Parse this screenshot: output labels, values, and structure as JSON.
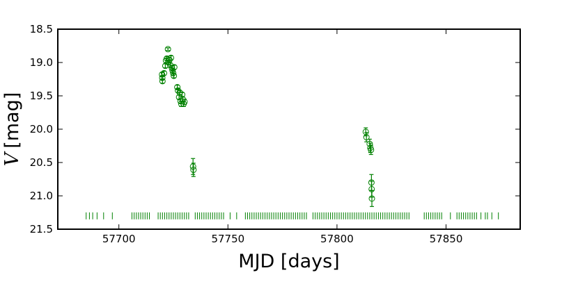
{
  "chart_data": {
    "type": "scatter",
    "title": "",
    "xlabel": "MJD [days]",
    "ylabel_var": "V",
    "ylabel_unit": "[mag]",
    "xlim": [
      57672,
      57884
    ],
    "ylim": [
      21.5,
      18.5
    ],
    "y_inverted": true,
    "grid": false,
    "legend": "none",
    "color": "#008000",
    "x_ticks": [
      57700,
      57750,
      57800,
      57850
    ],
    "x_tick_labels": [
      "57700",
      "57750",
      "57800",
      "57850"
    ],
    "y_ticks": [
      18.5,
      19.0,
      19.5,
      20.0,
      20.5,
      21.0,
      21.5
    ],
    "y_tick_labels": [
      "18.5",
      "19.0",
      "19.5",
      "20.0",
      "20.5",
      "21.0",
      "21.5"
    ],
    "series": [
      {
        "marker": "open-circle-with-errorbar",
        "points": [
          {
            "x": 57719.8,
            "y": 19.18,
            "err": 0.03
          },
          {
            "x": 57719.9,
            "y": 19.23,
            "err": 0.03
          },
          {
            "x": 57720.0,
            "y": 19.28,
            "err": 0.03
          },
          {
            "x": 57720.7,
            "y": 19.16,
            "err": 0.03
          },
          {
            "x": 57721.3,
            "y": 19.05,
            "err": 0.03
          },
          {
            "x": 57721.6,
            "y": 18.97,
            "err": 0.03
          },
          {
            "x": 57722.0,
            "y": 18.94,
            "err": 0.03
          },
          {
            "x": 57722.5,
            "y": 18.8,
            "err": 0.02
          },
          {
            "x": 57722.7,
            "y": 19.0,
            "err": 0.03
          },
          {
            "x": 57723.2,
            "y": 18.96,
            "err": 0.03
          },
          {
            "x": 57723.6,
            "y": 19.04,
            "err": 0.03
          },
          {
            "x": 57723.9,
            "y": 18.93,
            "err": 0.03
          },
          {
            "x": 57724.3,
            "y": 19.08,
            "err": 0.03
          },
          {
            "x": 57724.6,
            "y": 19.12,
            "err": 0.03
          },
          {
            "x": 57724.9,
            "y": 19.16,
            "err": 0.03
          },
          {
            "x": 57725.2,
            "y": 19.2,
            "err": 0.03
          },
          {
            "x": 57725.4,
            "y": 19.07,
            "err": 0.03
          },
          {
            "x": 57726.8,
            "y": 19.37,
            "err": 0.03
          },
          {
            "x": 57727.1,
            "y": 19.42,
            "err": 0.03
          },
          {
            "x": 57727.6,
            "y": 19.52,
            "err": 0.03
          },
          {
            "x": 57727.9,
            "y": 19.45,
            "err": 0.03
          },
          {
            "x": 57728.3,
            "y": 19.58,
            "err": 0.03
          },
          {
            "x": 57728.6,
            "y": 19.62,
            "err": 0.04
          },
          {
            "x": 57729.0,
            "y": 19.48,
            "err": 0.03
          },
          {
            "x": 57729.3,
            "y": 19.55,
            "err": 0.03
          },
          {
            "x": 57729.7,
            "y": 19.62,
            "err": 0.04
          },
          {
            "x": 57730.1,
            "y": 19.59,
            "err": 0.04
          },
          {
            "x": 57734.0,
            "y": 20.56,
            "err": 0.12
          },
          {
            "x": 57734.2,
            "y": 20.61,
            "err": 0.1
          },
          {
            "x": 57813.2,
            "y": 20.04,
            "err": 0.06
          },
          {
            "x": 57813.5,
            "y": 20.12,
            "err": 0.07
          },
          {
            "x": 57815.0,
            "y": 20.22,
            "err": 0.07
          },
          {
            "x": 57815.3,
            "y": 20.28,
            "err": 0.07
          },
          {
            "x": 57815.6,
            "y": 20.31,
            "err": 0.07
          },
          {
            "x": 57815.8,
            "y": 20.8,
            "err": 0.12
          },
          {
            "x": 57815.9,
            "y": 20.9,
            "err": 0.12
          },
          {
            "x": 57816.0,
            "y": 21.04,
            "err": 0.12
          }
        ]
      },
      {
        "marker": "vertical-tick",
        "y": 21.3,
        "x": [
          57685,
          57686.5,
          57688,
          57690,
          57693,
          57697,
          57706,
          57707,
          57708,
          57709,
          57710,
          57711,
          57712,
          57713,
          57714,
          57718,
          57719,
          57720,
          57721,
          57722,
          57723,
          57724,
          57725,
          57726,
          57727,
          57728,
          57729,
          57730,
          57731,
          57732,
          57735,
          57736,
          57737,
          57738,
          57739,
          57740,
          57741,
          57742,
          57743,
          57744,
          57745,
          57746,
          57747,
          57748,
          57751,
          57754,
          57758,
          57759,
          57760,
          57761,
          57762,
          57763,
          57764,
          57765,
          57766,
          57767,
          57768,
          57769,
          57770,
          57771,
          57772,
          57773,
          57774,
          57775,
          57776,
          57777,
          57778,
          57779,
          57780,
          57781,
          57782,
          57783,
          57784,
          57785,
          57786,
          57789,
          57790,
          57791,
          57792,
          57793,
          57794,
          57795,
          57796,
          57797,
          57798,
          57799,
          57800,
          57801,
          57802,
          57803,
          57804,
          57805,
          57806,
          57807,
          57808,
          57809,
          57810,
          57811,
          57812,
          57813,
          57814,
          57815,
          57816,
          57817,
          57818,
          57819,
          57820,
          57821,
          57822,
          57823,
          57824,
          57825,
          57826,
          57827,
          57828,
          57829,
          57830,
          57831,
          57832,
          57833,
          57840,
          57841,
          57842,
          57843,
          57844,
          57845,
          57846,
          57847,
          57848,
          57852,
          57855,
          57856,
          57857,
          57858,
          57859,
          57860,
          57861,
          57862,
          57863,
          57864,
          57866,
          57868,
          57869,
          57871,
          57874
        ]
      }
    ]
  }
}
